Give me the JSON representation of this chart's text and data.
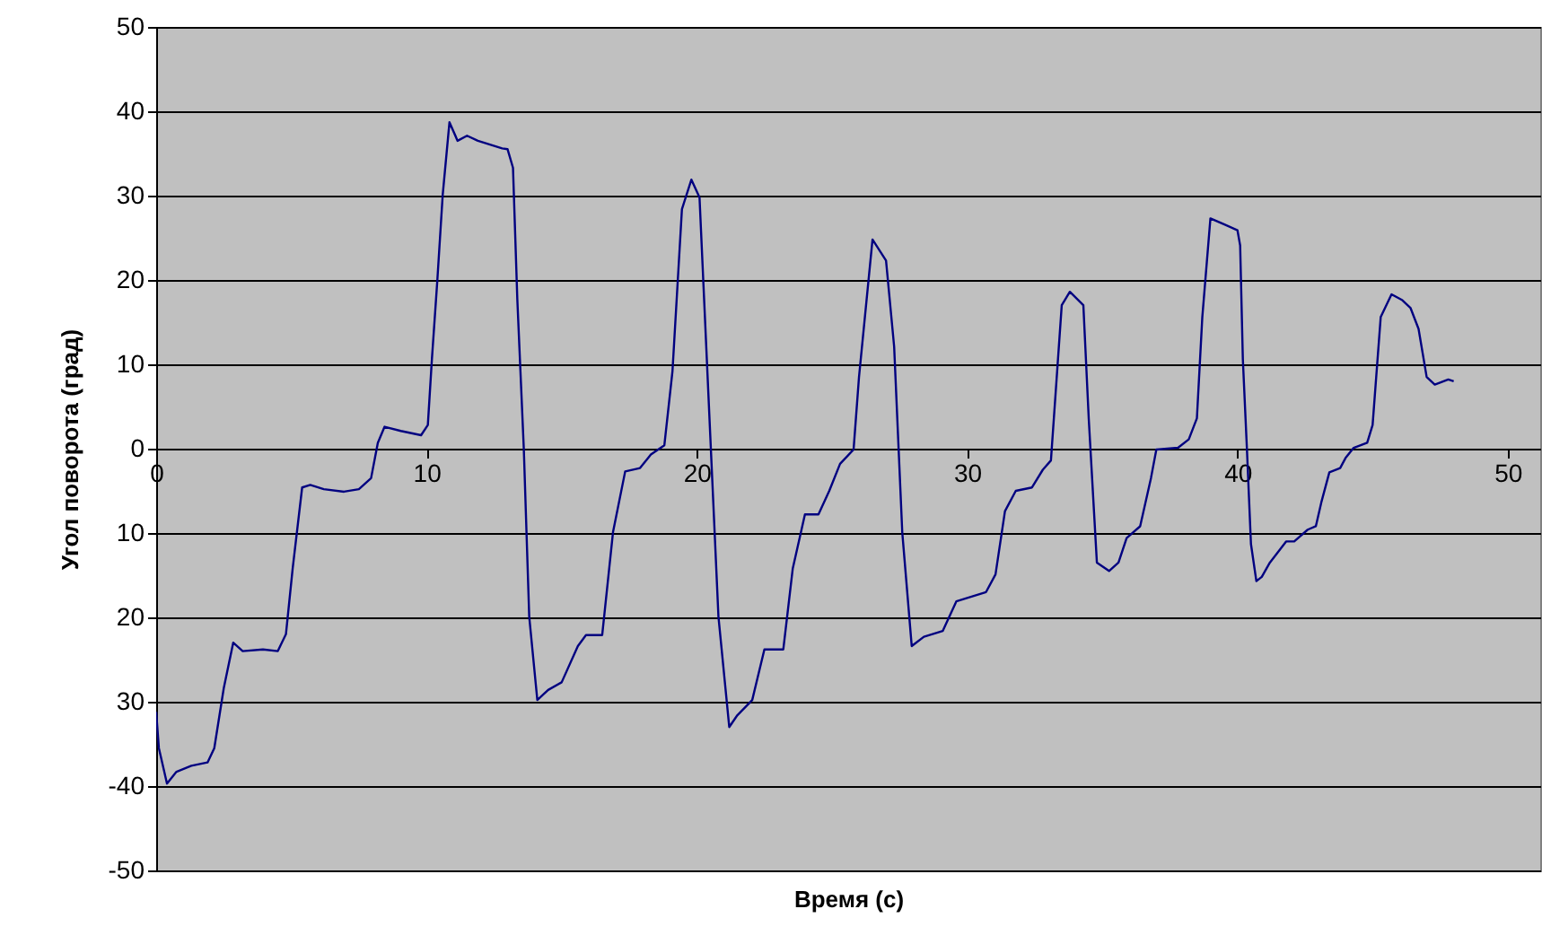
{
  "chart_data": {
    "type": "line",
    "xlabel": "Время (с)",
    "ylabel": "Угол поворота (град)",
    "xlim": [
      0,
      51.2
    ],
    "xticks": [
      0,
      10,
      20,
      30,
      40,
      50
    ],
    "ylim": [
      -50,
      50
    ],
    "yticks": [
      -50,
      -40,
      {
        "value": -30,
        "label": "30"
      },
      {
        "value": -20,
        "label": "20"
      },
      {
        "value": -10,
        "label": "10"
      },
      0,
      10,
      20,
      30,
      40,
      50
    ],
    "grid": "y",
    "series": [
      {
        "color": "#000080",
        "x": [
          0,
          0.1,
          0.4,
          0.75,
          1.3,
          1.9,
          2.15,
          2.5,
          2.85,
          3.2,
          3.95,
          4.5,
          4.8,
          5.05,
          5.4,
          5.7,
          6.2,
          6.95,
          7.5,
          7.95,
          8.2,
          8.45,
          9.05,
          9.8,
          10.05,
          10.2,
          10.4,
          10.6,
          10.85,
          11.15,
          11.5,
          11.9,
          12.8,
          13.0,
          13.2,
          13.36,
          13.6,
          13.8,
          14.1,
          14.5,
          15.0,
          15.6,
          15.9,
          16.5,
          16.9,
          17.35,
          17.9,
          18.3,
          18.8,
          19.1,
          19.45,
          19.8,
          20.1,
          20.5,
          20.8,
          21.2,
          21.5,
          22.05,
          22.5,
          23.2,
          23.55,
          24.0,
          24.5,
          24.9,
          25.3,
          25.8,
          26.0,
          26.5,
          27.0,
          27.3,
          27.6,
          27.95,
          28.4,
          29.1,
          29.6,
          30.7,
          31.05,
          31.4,
          31.8,
          32.4,
          32.8,
          33.1,
          33.5,
          33.8,
          34.3,
          34.5,
          34.8,
          35.25,
          35.6,
          35.9,
          36.4,
          36.8,
          37.0,
          37.8,
          38.2,
          38.5,
          38.7,
          39.0,
          39.5,
          40.0,
          40.1,
          40.2,
          40.35,
          40.5,
          40.7,
          40.9,
          41.2,
          41.8,
          42.1,
          42.6,
          42.9,
          43.1,
          43.4,
          43.8,
          44.0,
          44.3,
          44.8,
          45.0,
          45.3,
          45.7,
          46.1,
          46.4,
          46.7,
          47.0,
          47.3,
          47.8,
          48.0
        ],
        "values": [
          -31.2,
          -35.5,
          -39.7,
          -38.3,
          -37.6,
          -37.2,
          -35.5,
          -28.4,
          -23,
          -24,
          -23.8,
          -24,
          -22,
          -14.2,
          -4.6,
          -4.3,
          -4.8,
          -5.1,
          -4.8,
          -3.5,
          0.7,
          2.6,
          2.1,
          1.6,
          2.8,
          10.6,
          19.9,
          30.1,
          38.7,
          36.5,
          37.1,
          36.5,
          35.6,
          35.5,
          33.3,
          17.7,
          0,
          -19.9,
          -29.8,
          -28.6,
          -27.7,
          -23.4,
          -22.1,
          -22.1,
          -9.9,
          -2.7,
          -2.3,
          -0.7,
          0.4,
          9.2,
          28.4,
          31.9,
          29.8,
          1.4,
          -19.9,
          -33,
          -31.6,
          -29.8,
          -23.8,
          -23.8,
          -14.2,
          -7.8,
          -7.8,
          -5,
          -1.8,
          -0.1,
          8.5,
          24.8,
          22.3,
          12.1,
          -9.9,
          -23.4,
          -22.3,
          -21.6,
          -18.1,
          -17,
          -14.9,
          -7.4,
          -5,
          -4.6,
          -2.5,
          -1.4,
          17,
          18.6,
          17,
          3.5,
          -13.5,
          -14.5,
          -13.5,
          -10.6,
          -9.2,
          -3.5,
          -0.1,
          0.1,
          1.1,
          3.6,
          15.6,
          27.3,
          26.6,
          25.9,
          24.1,
          10.6,
          0,
          -11.3,
          -15.7,
          -15.2,
          -13.5,
          -11,
          -11,
          -9.6,
          -9.2,
          -6.4,
          -2.8,
          -2.3,
          -1.1,
          0.1,
          0.7,
          2.8,
          15.6,
          18.3,
          17.6,
          16.7,
          14.2,
          8.5,
          7.6,
          8.2,
          8.0
        ]
      }
    ]
  }
}
